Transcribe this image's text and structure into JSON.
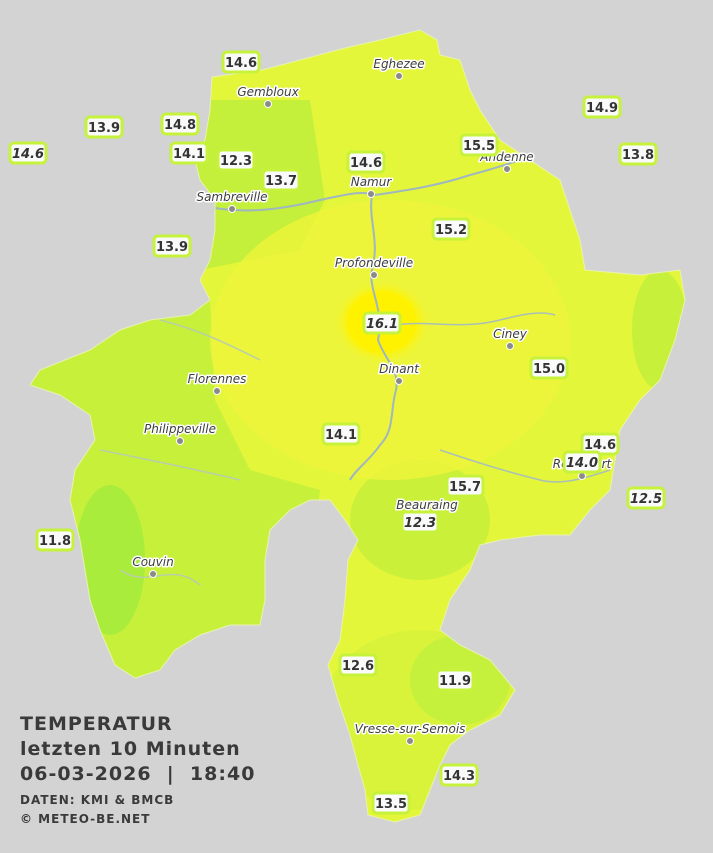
{
  "legend": {
    "title": "TEMPERATUR",
    "subtitle": "letzten 10 Minuten",
    "datetime": "06-03-2026  |  18:40",
    "source": "DATEN: KMI & BMCB",
    "copyright": "© METEO-BE.NET"
  },
  "cities": [
    {
      "name": "Eghezee"
    },
    {
      "name": "Gembloux"
    },
    {
      "name": "Andenne"
    },
    {
      "name": "Namur"
    },
    {
      "name": "Sambreville"
    },
    {
      "name": "Profondeville"
    },
    {
      "name": "Ciney"
    },
    {
      "name": "Dinant"
    },
    {
      "name": "Florennes"
    },
    {
      "name": "Philippeville"
    },
    {
      "name": "Rochefort"
    },
    {
      "name": "Beauraing"
    },
    {
      "name": "Couvin"
    },
    {
      "name": "Vresse-sur-Semois"
    }
  ],
  "stations": [
    {
      "value": "14.6",
      "italic": false
    },
    {
      "value": "13.9",
      "italic": false
    },
    {
      "value": "14.8",
      "italic": false
    },
    {
      "value": "14.6",
      "italic": true
    },
    {
      "value": "14.1",
      "italic": false
    },
    {
      "value": "12.3",
      "italic": false
    },
    {
      "value": "13.7",
      "italic": false
    },
    {
      "value": "14.6",
      "italic": false
    },
    {
      "value": "15.5",
      "italic": false
    },
    {
      "value": "14.9",
      "italic": false
    },
    {
      "value": "13.8",
      "italic": false
    },
    {
      "value": "13.9",
      "italic": false
    },
    {
      "value": "15.2",
      "italic": false
    },
    {
      "value": "16.1",
      "italic": true
    },
    {
      "value": "15.0",
      "italic": false
    },
    {
      "value": "14.1",
      "italic": false
    },
    {
      "value": "14.6",
      "italic": false
    },
    {
      "value": "14.0",
      "italic": true
    },
    {
      "value": "12.5",
      "italic": true
    },
    {
      "value": "15.7",
      "italic": false
    },
    {
      "value": "12.3",
      "italic": true
    },
    {
      "value": "11.8",
      "italic": false
    },
    {
      "value": "12.6",
      "italic": false
    },
    {
      "value": "11.9",
      "italic": false
    },
    {
      "value": "14.3",
      "italic": false
    },
    {
      "value": "13.5",
      "italic": false
    }
  ]
}
